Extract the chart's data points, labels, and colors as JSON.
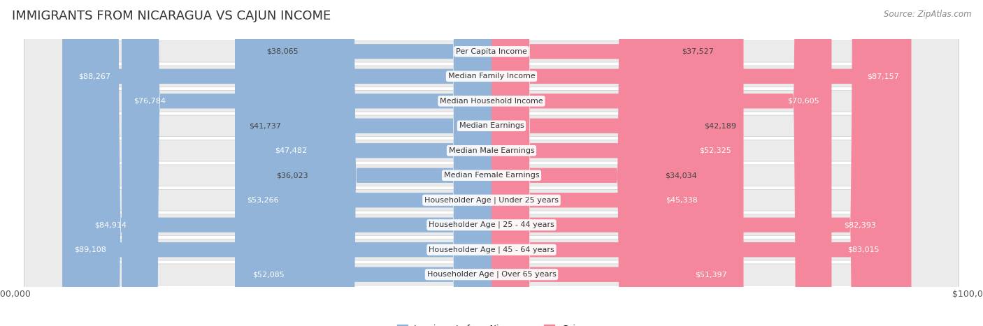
{
  "title": "IMMIGRANTS FROM NICARAGUA VS CAJUN INCOME",
  "source": "Source: ZipAtlas.com",
  "categories": [
    "Per Capita Income",
    "Median Family Income",
    "Median Household Income",
    "Median Earnings",
    "Median Male Earnings",
    "Median Female Earnings",
    "Householder Age | Under 25 years",
    "Householder Age | 25 - 44 years",
    "Householder Age | 45 - 64 years",
    "Householder Age | Over 65 years"
  ],
  "nicaragua_values": [
    38065,
    88267,
    76784,
    41737,
    47482,
    36023,
    53266,
    84914,
    89108,
    52085
  ],
  "cajun_values": [
    37527,
    87157,
    70605,
    42189,
    52325,
    34034,
    45338,
    82393,
    83015,
    51397
  ],
  "nicaragua_color": "#92b4d8",
  "cajun_color": "#f4879c",
  "nicaragua_label": "Immigrants from Nicaragua",
  "cajun_label": "Cajun",
  "max_value": 100000,
  "background_color": "#ffffff",
  "row_bg_color": "#ebebeb",
  "title_fontsize": 13,
  "source_fontsize": 8.5,
  "label_fontsize": 8,
  "value_fontsize": 8
}
